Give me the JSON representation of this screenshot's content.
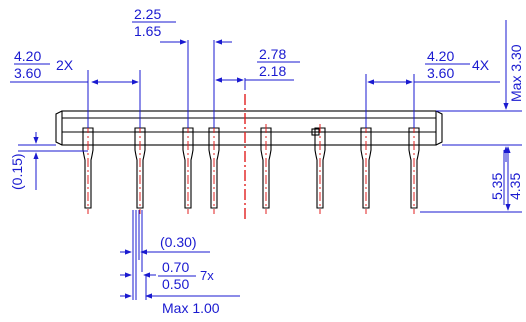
{
  "dimensions": {
    "pitch_2x": {
      "max": "4.20",
      "min": "3.60",
      "count": "2X"
    },
    "pin_width_top": {
      "max": "2.25",
      "min": "1.65"
    },
    "pitch_mid": {
      "max": "2.78",
      "min": "2.18"
    },
    "pitch_4x": {
      "max": "4.20",
      "min": "3.60",
      "count": "4X"
    },
    "body_height": "Max 3.30",
    "pin_length": {
      "max": "5.35",
      "min": "4.35"
    },
    "standoff": "(0.15)",
    "pin_thickness": "(0.30)",
    "pin_width": {
      "max": "0.70",
      "min": "0.50",
      "count": "7x"
    },
    "pin_overall": "Max 1.00"
  },
  "colors": {
    "dimension": "#1a1ad0",
    "outline": "#000000",
    "centerline": "#e02020"
  }
}
